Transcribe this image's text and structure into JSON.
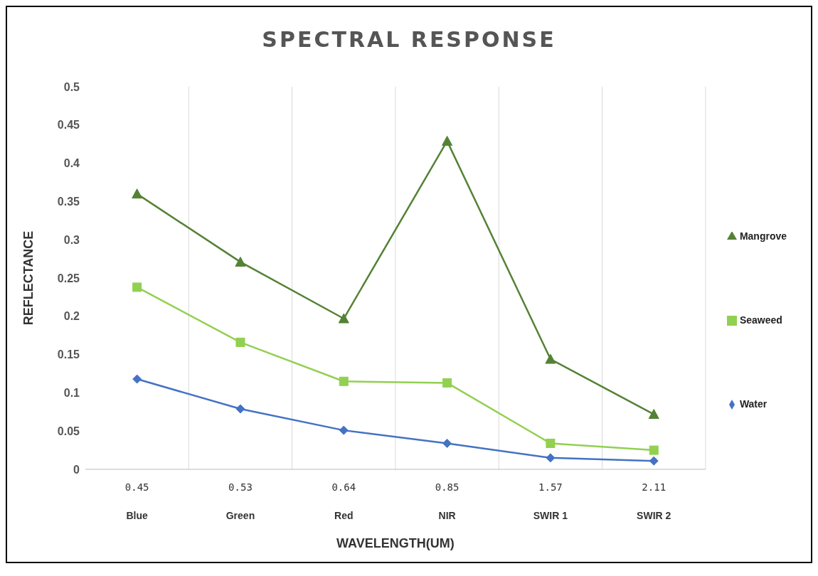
{
  "chart_data": {
    "type": "line",
    "title": "SPECTRAL RESPONSE",
    "xlabel": "WAVELENGTH(UM)",
    "ylabel": "REFLECTANCE",
    "categories": [
      "0.45\nBlue",
      "0.53\nGreen",
      "0.64\nRed",
      "0.85\nNIR",
      "1.57\nSWIR 1",
      "2.11\nSWIR 2"
    ],
    "series": [
      {
        "name": "Mangrove",
        "color": "#548235",
        "marker": "triangle",
        "values": [
          0.36,
          0.271,
          0.197,
          0.429,
          0.144,
          0.072
        ]
      },
      {
        "name": "Seaweed",
        "color": "#92d050",
        "marker": "square",
        "values": [
          0.238,
          0.166,
          0.115,
          0.113,
          0.034,
          0.025
        ]
      },
      {
        "name": "Water",
        "color": "#4472c4",
        "marker": "diamond",
        "values": [
          0.118,
          0.079,
          0.051,
          0.034,
          0.015,
          0.011
        ]
      }
    ],
    "ylim": [
      0,
      0.5
    ],
    "yticks": [
      0,
      0.05,
      0.1,
      0.15,
      0.2,
      0.25,
      0.3,
      0.35,
      0.4,
      0.45,
      0.5
    ],
    "grid": "x",
    "legend": "right",
    "line_style": "solid"
  }
}
